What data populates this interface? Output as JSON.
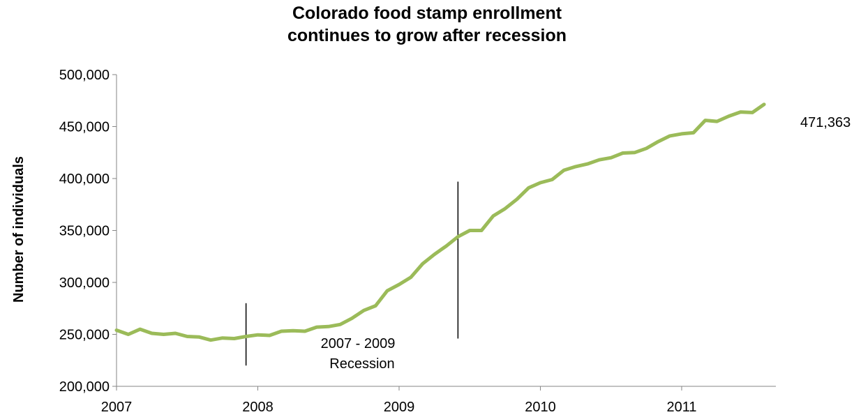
{
  "chart_data": {
    "type": "line",
    "title_lines": [
      "Colorado food stamp enrollment",
      "continues to grow after recession"
    ],
    "xlabel": "",
    "ylabel": "Number of individuals",
    "x_tick_labels": [
      "2007",
      "2008",
      "2009",
      "2010",
      "2011"
    ],
    "y_tick_labels": [
      "200,000",
      "250,000",
      "300,000",
      "350,000",
      "400,000",
      "450,000",
      "500,000"
    ],
    "ylim": [
      200000,
      500000
    ],
    "grid": false,
    "legend": "none",
    "color": "#9BBB59",
    "end_label": "471,363",
    "recession_label_lines": [
      "2007 - 2009",
      "Recession"
    ],
    "recession_markers": [
      {
        "date": "2007-12",
        "y_bottom": 220000,
        "y_top": 280000
      },
      {
        "date": "2009-06",
        "y_bottom": 246000,
        "y_top": 397000
      }
    ],
    "series": [
      {
        "x": [
          "2007-01",
          "2007-02",
          "2007-03",
          "2007-04",
          "2007-05",
          "2007-06",
          "2007-07",
          "2007-08",
          "2007-09",
          "2007-10",
          "2007-11",
          "2007-12",
          "2008-01",
          "2008-02",
          "2008-03",
          "2008-04",
          "2008-05",
          "2008-06",
          "2008-07",
          "2008-08",
          "2008-09",
          "2008-10",
          "2008-11",
          "2008-12",
          "2009-01",
          "2009-02",
          "2009-03",
          "2009-04",
          "2009-05",
          "2009-06",
          "2009-07",
          "2009-08",
          "2009-09",
          "2009-10",
          "2009-11",
          "2009-12",
          "2010-01",
          "2010-02",
          "2010-03",
          "2010-04",
          "2010-05",
          "2010-06",
          "2010-07",
          "2010-08",
          "2010-09",
          "2010-10",
          "2010-11",
          "2010-12",
          "2011-01",
          "2011-02",
          "2011-03",
          "2011-04",
          "2011-05",
          "2011-06",
          "2011-07",
          "2011-08"
        ],
        "values": [
          254000,
          250000,
          255000,
          251000,
          250000,
          251000,
          248000,
          247500,
          244500,
          246500,
          246000,
          248000,
          249500,
          249000,
          253000,
          253500,
          253000,
          257000,
          257500,
          259500,
          265500,
          273000,
          277500,
          292000,
          298000,
          305000,
          318000,
          327000,
          335000,
          344000,
          350000,
          350000,
          364000,
          371000,
          380000,
          391000,
          396000,
          399000,
          408000,
          411500,
          414000,
          418000,
          420000,
          424500,
          425000,
          429000,
          435500,
          441000,
          443000,
          444000,
          456000,
          455000,
          460000,
          464000,
          463500,
          471363
        ]
      }
    ]
  }
}
